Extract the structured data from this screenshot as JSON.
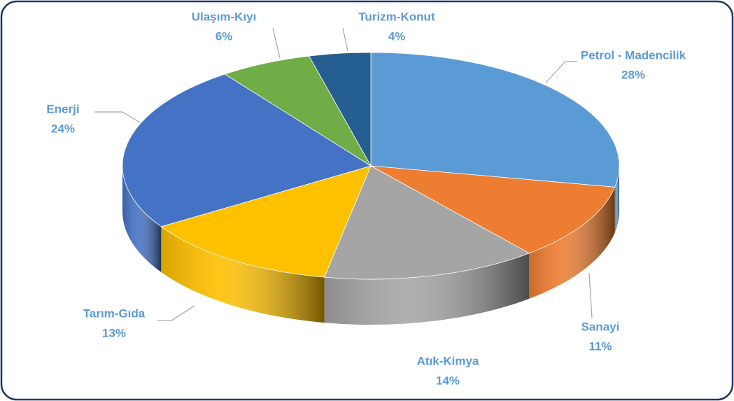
{
  "chart_data": {
    "type": "pie",
    "three_d": true,
    "categories": [
      "Petrol - Madencilik",
      "Sanayi",
      "Atık-Kimya",
      "Tarım-Gıda",
      "Enerji",
      "Ulaşım-Kıyı",
      "Turizm-Konut"
    ],
    "values": [
      28,
      11,
      14,
      13,
      24,
      6,
      4
    ],
    "value_labels": [
      "28%",
      "11%",
      "14%",
      "13%",
      "24%",
      "6%",
      "4%"
    ],
    "colors": [
      "#5b9bd5",
      "#ed7d31",
      "#a5a5a5",
      "#ffc000",
      "#4472c4",
      "#70ad47",
      "#255e91"
    ]
  }
}
